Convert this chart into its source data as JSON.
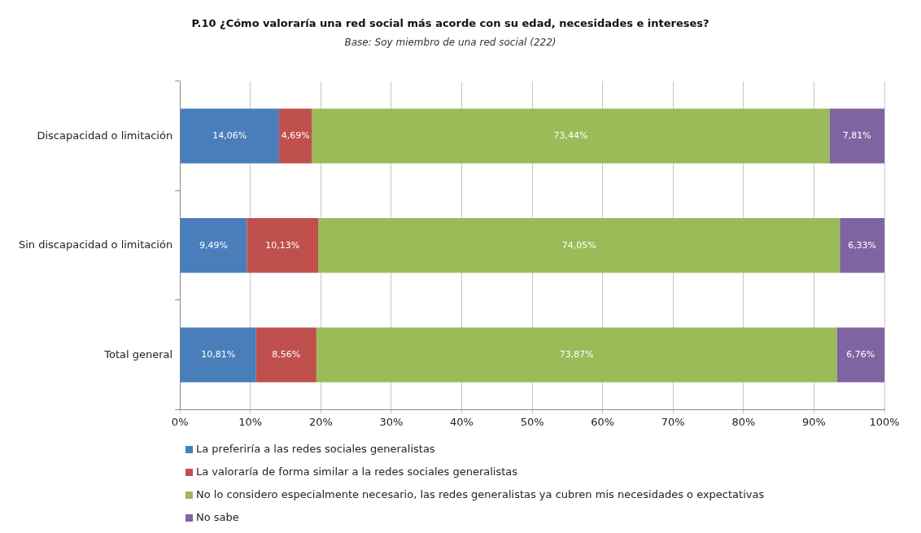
{
  "chart_data": {
    "type": "bar",
    "orientation": "horizontal",
    "stacked": true,
    "title": "P.10 ¿Cómo valoraría una red social más acorde con su edad, necesidades e intereses?",
    "subtitle": "Base: Soy miembro de una red social (222)",
    "categories": [
      "Discapacidad o limitación",
      "Sin discapacidad o limitación",
      "Total general"
    ],
    "series": [
      {
        "name": "La preferiría  a las redes sociales generalistas",
        "color": "#4a7ebb",
        "values": [
          14.06,
          9.49,
          10.81
        ],
        "value_labels": [
          "14,06%",
          "9,49%",
          "10,81%"
        ]
      },
      {
        "name": "La valoraría de forma similar a la redes sociales generalistas",
        "color": "#c0504d",
        "values": [
          4.69,
          10.13,
          8.56
        ],
        "value_labels": [
          "4,69%",
          "10,13%",
          "8,56%"
        ]
      },
      {
        "name": "No lo considero especialmente necesario, las redes generalistas ya cubren mis necesidades o expectativas",
        "color": "#9bbb59",
        "values": [
          73.44,
          74.05,
          73.87
        ],
        "value_labels": [
          "73,44%",
          "74,05%",
          "73,87%"
        ]
      },
      {
        "name": "No sabe",
        "color": "#8064a2",
        "values": [
          7.81,
          6.33,
          6.76
        ],
        "value_labels": [
          "7,81%",
          "6,33%",
          "6,76%"
        ]
      }
    ],
    "xlim": [
      0,
      100
    ],
    "xticks": [
      {
        "value": 0,
        "label": "0%"
      },
      {
        "value": 10,
        "label": "10%"
      },
      {
        "value": 20,
        "label": "20%"
      },
      {
        "value": 30,
        "label": "30%"
      },
      {
        "value": 40,
        "label": "40%"
      },
      {
        "value": 50,
        "label": "50%"
      },
      {
        "value": 60,
        "label": "60%"
      },
      {
        "value": 70,
        "label": "70%"
      },
      {
        "value": 80,
        "label": "80%"
      },
      {
        "value": 90,
        "label": "90%"
      },
      {
        "value": 100,
        "label": "100%"
      }
    ],
    "grid": "x",
    "legend": "bottom"
  }
}
